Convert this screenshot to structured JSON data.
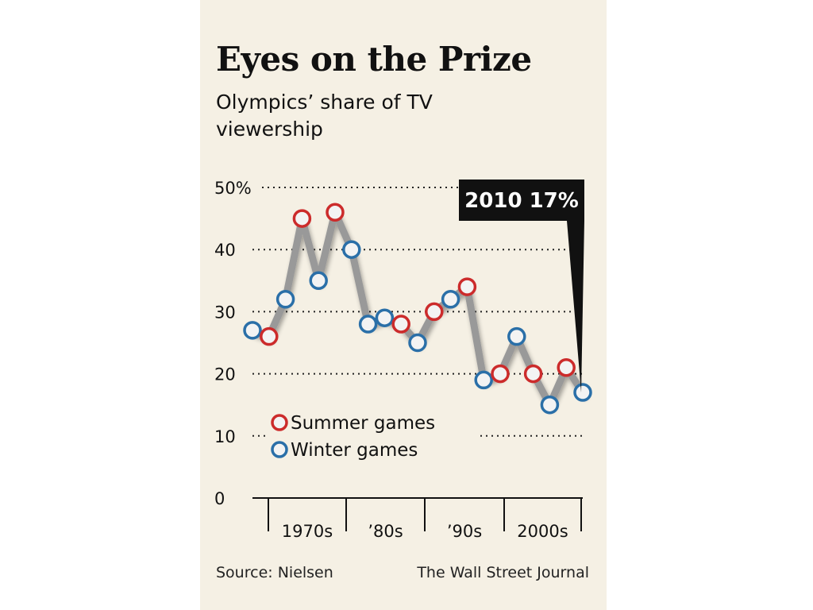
{
  "chart_data": {
    "type": "line",
    "title": "Eyes on the Prize",
    "subtitle": "Olympics’ share of TV viewership",
    "ylim": [
      0,
      50
    ],
    "y_ticks": [
      {
        "value": 50,
        "label": "50%"
      },
      {
        "value": 40,
        "label": "40"
      },
      {
        "value": 30,
        "label": "30"
      },
      {
        "value": 20,
        "label": "20"
      },
      {
        "value": 10,
        "label": "10"
      },
      {
        "value": 0,
        "label": "0"
      }
    ],
    "x_groups": [
      "1970s",
      "’80s",
      "’90s",
      "2000s"
    ],
    "points": [
      {
        "season": "winter",
        "value": 27
      },
      {
        "season": "summer",
        "value": 26
      },
      {
        "season": "winter",
        "value": 32
      },
      {
        "season": "summer",
        "value": 45
      },
      {
        "season": "winter",
        "value": 35
      },
      {
        "season": "summer",
        "value": 46
      },
      {
        "season": "winter",
        "value": 40
      },
      {
        "season": "winter",
        "value": 28
      },
      {
        "season": "winter",
        "value": 29
      },
      {
        "season": "summer",
        "value": 28
      },
      {
        "season": "winter",
        "value": 25
      },
      {
        "season": "summer",
        "value": 30
      },
      {
        "season": "winter",
        "value": 32
      },
      {
        "season": "summer",
        "value": 34
      },
      {
        "season": "winter",
        "value": 19
      },
      {
        "season": "summer",
        "value": 20
      },
      {
        "season": "winter",
        "value": 26
      },
      {
        "season": "summer",
        "value": 20
      },
      {
        "season": "winter",
        "value": 15
      },
      {
        "season": "summer",
        "value": 21
      },
      {
        "season": "winter",
        "value": 17
      }
    ],
    "legend": {
      "placement": "bottom-left",
      "entries": [
        {
          "key": "summer",
          "label": "Summer games"
        },
        {
          "key": "winter",
          "label": "Winter games"
        }
      ]
    },
    "callout": {
      "text": "2010 17%",
      "point_index": 20
    },
    "grid": true,
    "colors": {
      "summer": "#cc2b2b",
      "winter": "#2a6fa8",
      "line": "#999999",
      "marker_fill": "#f3f3f3",
      "callout_bg": "#111111",
      "callout_text": "#ffffff"
    }
  },
  "footer": {
    "source": "Source: Nielsen",
    "publisher": "The Wall Street Journal"
  }
}
